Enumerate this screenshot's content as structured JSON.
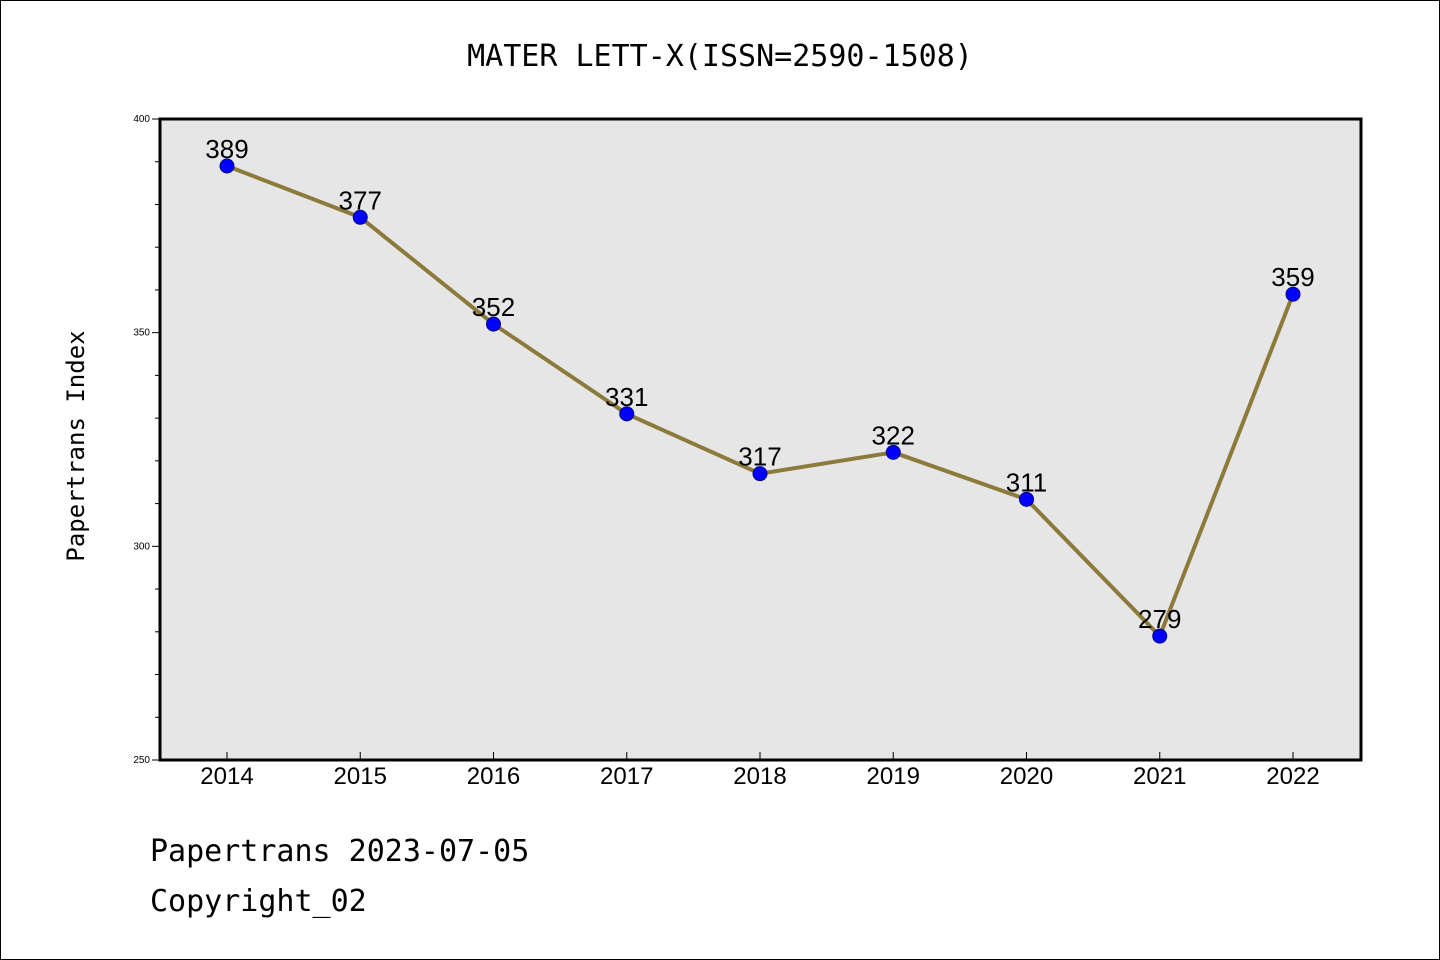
{
  "footer": {
    "line1": "Papertrans 2023-07-05",
    "line2": "Copyright_02"
  },
  "colors": {
    "plot_background": "#e6e6e6",
    "line": "#8b7a3a",
    "marker": "#0000ff"
  },
  "chart_data": {
    "type": "line",
    "title": "MATER LETT-X(ISSN=2590-1508)",
    "xlabel": "",
    "ylabel": "Papertrans Index",
    "categories": [
      "2014",
      "2015",
      "2016",
      "2017",
      "2018",
      "2019",
      "2020",
      "2021",
      "2022"
    ],
    "series": [
      {
        "values": [
          389,
          377,
          352,
          331,
          317,
          322,
          311,
          279,
          359
        ]
      }
    ],
    "ylim": [
      250,
      400
    ],
    "yticks": [
      250,
      300,
      350,
      400
    ],
    "grid": false,
    "data_labels": true
  }
}
